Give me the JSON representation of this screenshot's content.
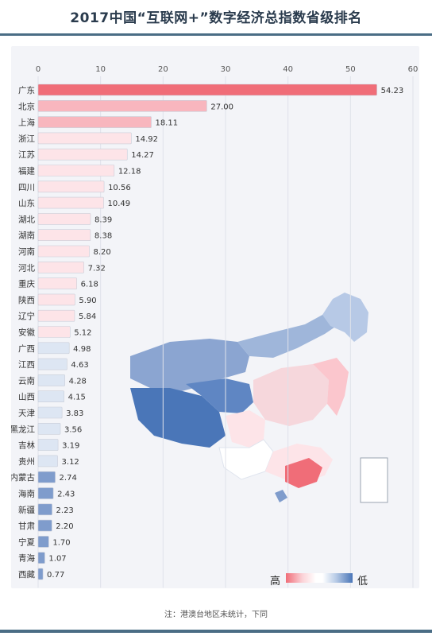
{
  "title": "2017中国“互联网+”数字经济总指数省级排名",
  "footnote": "注：港澳台地区未统计，下同",
  "legend": {
    "high": "高",
    "low": "低"
  },
  "colors": {
    "top": "#f06d78",
    "high": "#f8b6be",
    "mid": "#fde4e8",
    "low_light": "#dde6f3",
    "low": "#7f9ccc",
    "header_rule": "#4a6d85"
  },
  "map_icon": "china-province-map",
  "chart_data": {
    "type": "bar",
    "orientation": "horizontal",
    "title": "2017中国“互联网+”数字经济总指数省级排名",
    "xlim": [
      0,
      60
    ],
    "xticks": [
      0,
      10,
      20,
      30,
      40,
      50,
      60
    ],
    "grid": true,
    "categories": [
      "广东",
      "北京",
      "上海",
      "浙江",
      "江苏",
      "福建",
      "四川",
      "山东",
      "湖北",
      "湖南",
      "河南",
      "河北",
      "重庆",
      "陕西",
      "辽宁",
      "安徽",
      "广西",
      "江西",
      "云南",
      "山西",
      "天津",
      "黑龙江",
      "吉林",
      "贵州",
      "内蒙古",
      "海南",
      "新疆",
      "甘肃",
      "宁夏",
      "青海",
      "西藏"
    ],
    "values": [
      54.23,
      27.0,
      18.11,
      14.92,
      14.27,
      12.18,
      10.56,
      10.49,
      8.39,
      8.38,
      8.2,
      7.32,
      6.18,
      5.9,
      5.84,
      5.12,
      4.98,
      4.63,
      4.28,
      4.15,
      3.83,
      3.56,
      3.19,
      3.12,
      2.74,
      2.43,
      2.23,
      2.2,
      1.7,
      1.07,
      0.77
    ],
    "value_labels": [
      "54.23",
      "27.00",
      "18.11",
      "14.92",
      "14.27",
      "12.18",
      "10.56",
      "10.49",
      "8.39",
      "8.38",
      "8.20",
      "7.32",
      "6.18",
      "5.90",
      "5.84",
      "5.12",
      "4.98",
      "4.63",
      "4.28",
      "4.15",
      "3.83",
      "3.56",
      "3.19",
      "3.12",
      "2.74",
      "2.43",
      "2.23",
      "2.20",
      "1.70",
      "1.07",
      "0.77"
    ]
  }
}
